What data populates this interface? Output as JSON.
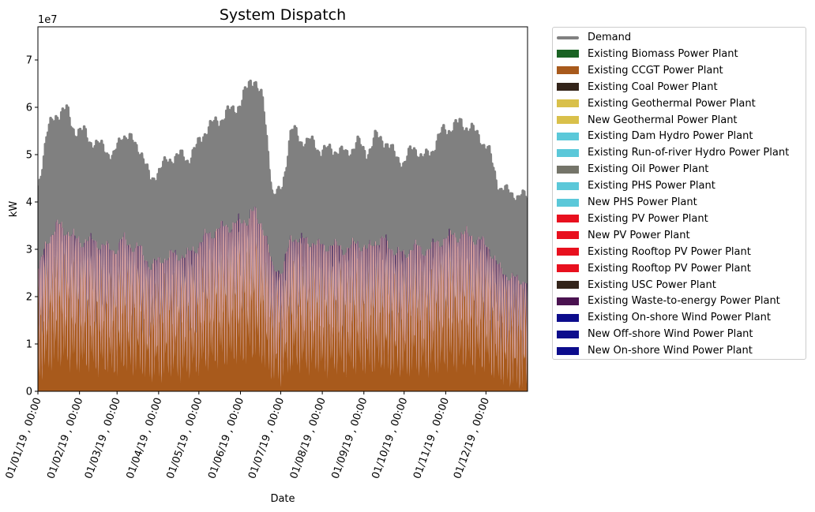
{
  "chart_data": {
    "type": "area",
    "stacked": true,
    "title": "System Dispatch",
    "xlabel": "Date",
    "ylabel": "kW",
    "y_offset_label": "1e7",
    "ylim": [
      0,
      7.7
    ],
    "y_unit_multiplier": 10000000,
    "yticks": [
      0,
      1,
      2,
      3,
      4,
      5,
      6,
      7
    ],
    "x_tick_labels": [
      "01/01/19 , 00:00",
      "01/02/19 , 00:00",
      "01/03/19 , 00:00",
      "01/04/19 , 00:00",
      "01/05/19 , 00:00",
      "01/06/19 , 00:00",
      "01/07/19 , 00:00",
      "01/08/19 , 00:00",
      "01/09/19 , 00:00",
      "01/10/19 , 00:00",
      "01/11/19 , 00:00",
      "01/12/19 , 00:00"
    ],
    "x_range_days": [
      0,
      365
    ],
    "legend_position": "outside-right",
    "demand_weekly_peak_1e7": [
      4.4,
      5.7,
      6.1,
      6.2,
      5.7,
      5.7,
      5.4,
      5.4,
      5.1,
      5.7,
      5.5,
      5.3,
      4.6,
      4.9,
      5.1,
      5.2,
      5.1,
      5.4,
      5.8,
      5.9,
      6.1,
      6.2,
      6.5,
      7.0,
      6.3,
      4.3,
      4.4,
      5.8,
      5.5,
      5.5,
      5.3,
      5.3,
      5.3,
      5.2,
      5.5,
      5.2,
      5.6,
      5.5,
      5.2,
      5.0,
      5.4,
      5.1,
      5.3,
      5.7,
      5.8,
      5.9,
      5.8,
      5.6,
      5.3,
      4.5,
      4.4,
      4.3
    ],
    "demand_weekly_trough_1e7": [
      2.4,
      3.0,
      3.3,
      3.2,
      3.0,
      3.0,
      3.0,
      2.9,
      2.8,
      3.0,
      2.9,
      2.8,
      2.5,
      2.6,
      2.7,
      2.7,
      2.7,
      2.9,
      3.1,
      3.2,
      3.3,
      3.3,
      3.4,
      3.5,
      3.3,
      2.5,
      2.4,
      3.1,
      3.0,
      3.0,
      2.9,
      2.9,
      2.9,
      2.8,
      3.0,
      2.8,
      3.0,
      3.0,
      2.8,
      2.7,
      2.9,
      2.8,
      2.9,
      3.0,
      3.1,
      3.1,
      3.1,
      3.0,
      2.9,
      2.5,
      2.3,
      2.2
    ],
    "series": [
      {
        "name": "Demand",
        "kind": "line",
        "color": "#808080"
      },
      {
        "name": "Existing Biomass Power Plant",
        "color": "#1a6324"
      },
      {
        "name": "Existing CCGT Power Plant",
        "color": "#a85a1c"
      },
      {
        "name": "Existing Coal Power Plant",
        "color": "#33241a"
      },
      {
        "name": "Existing Geothermal Power Plant",
        "color": "#d9c04a"
      },
      {
        "name": "New Geothermal Power Plant",
        "color": "#d9c04a"
      },
      {
        "name": "Existing Dam Hydro Power Plant",
        "color": "#5bc8d9"
      },
      {
        "name": "Existing Run-of-river Hydro Power Plant",
        "color": "#5bc8d9"
      },
      {
        "name": "Existing Oil Power Plant",
        "color": "#747469"
      },
      {
        "name": "Existing PHS Power Plant",
        "color": "#5bc8d9"
      },
      {
        "name": "New PHS Power Plant",
        "color": "#5bc8d9"
      },
      {
        "name": "Existing PV Power Plant",
        "color": "#e8101e"
      },
      {
        "name": "New PV Power Plant",
        "color": "#e8101e"
      },
      {
        "name": "Existing Rooftop PV Power Plant",
        "color": "#e8101e"
      },
      {
        "name": "Existing Rooftop PV Power Plant",
        "color": "#e8101e"
      },
      {
        "name": "Existing USC Power Plant",
        "color": "#33241a"
      },
      {
        "name": "Existing Waste-to-energy Power Plant",
        "color": "#4a1250"
      },
      {
        "name": "Existing On-shore Wind Power Plant",
        "color": "#0c0c8c"
      },
      {
        "name": "New Off-shore Wind Power Plant",
        "color": "#0c0c8c"
      },
      {
        "name": "New On-shore Wind Power Plant",
        "color": "#0c0c8c"
      }
    ]
  }
}
